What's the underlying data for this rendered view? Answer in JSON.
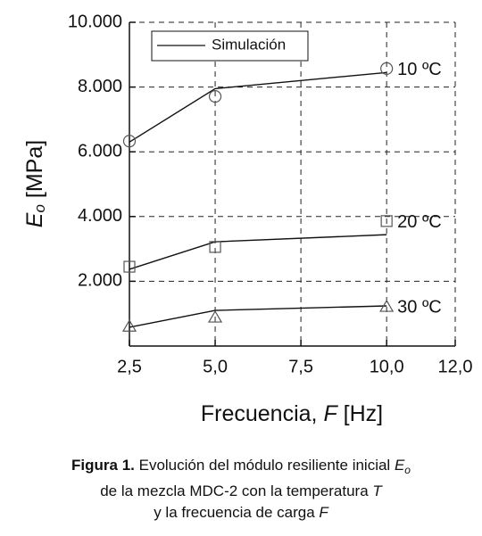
{
  "chart_data": {
    "type": "line",
    "x": [
      2.5,
      5,
      10
    ],
    "xlim": [
      2.5,
      12
    ],
    "xticks": [
      {
        "value": 2.5,
        "label": "2,5"
      },
      {
        "value": 5,
        "label": "5,0"
      },
      {
        "value": 7.5,
        "label": "7,5"
      },
      {
        "value": 10,
        "label": "10,0"
      },
      {
        "value": 12,
        "label": "12,0"
      }
    ],
    "ylim": [
      0,
      10000
    ],
    "yticks": [
      {
        "value": 2000,
        "label": "2.000"
      },
      {
        "value": 4000,
        "label": "4.000"
      },
      {
        "value": 6000,
        "label": "6.000"
      },
      {
        "value": 8000,
        "label": "8.000"
      },
      {
        "value": 10000,
        "label": "10.000"
      }
    ],
    "grid": true,
    "xlabel": [
      "Frecuencia, ",
      "F",
      " [Hz]"
    ],
    "ylabel": [
      "E",
      "o",
      " [MPa]"
    ],
    "legend": "Simulación",
    "series": [
      {
        "name": "10 ºC",
        "color": "#111111",
        "values": [
          6300,
          7950,
          8450
        ],
        "marker": "circle",
        "measured": [
          6330,
          7710,
          8570
        ]
      },
      {
        "name": "20 ºC",
        "color": "#111111",
        "values": [
          2370,
          3220,
          3440
        ],
        "marker": "square",
        "measured": [
          2450,
          3060,
          3860
        ]
      },
      {
        "name": "30 ºC",
        "color": "#111111",
        "values": [
          580,
          1100,
          1240
        ],
        "marker": "triangle",
        "measured": [
          600,
          880,
          1210
        ]
      }
    ]
  },
  "caption": {
    "label": "Figura 1.",
    "lines": [
      [
        " Evolución del módulo resiliente inicial ",
        "E",
        "o"
      ],
      [
        "de la mezcla MDC-2 con la temperatura ",
        "T"
      ],
      [
        "y la frecuencia de carga ",
        "F"
      ]
    ]
  }
}
